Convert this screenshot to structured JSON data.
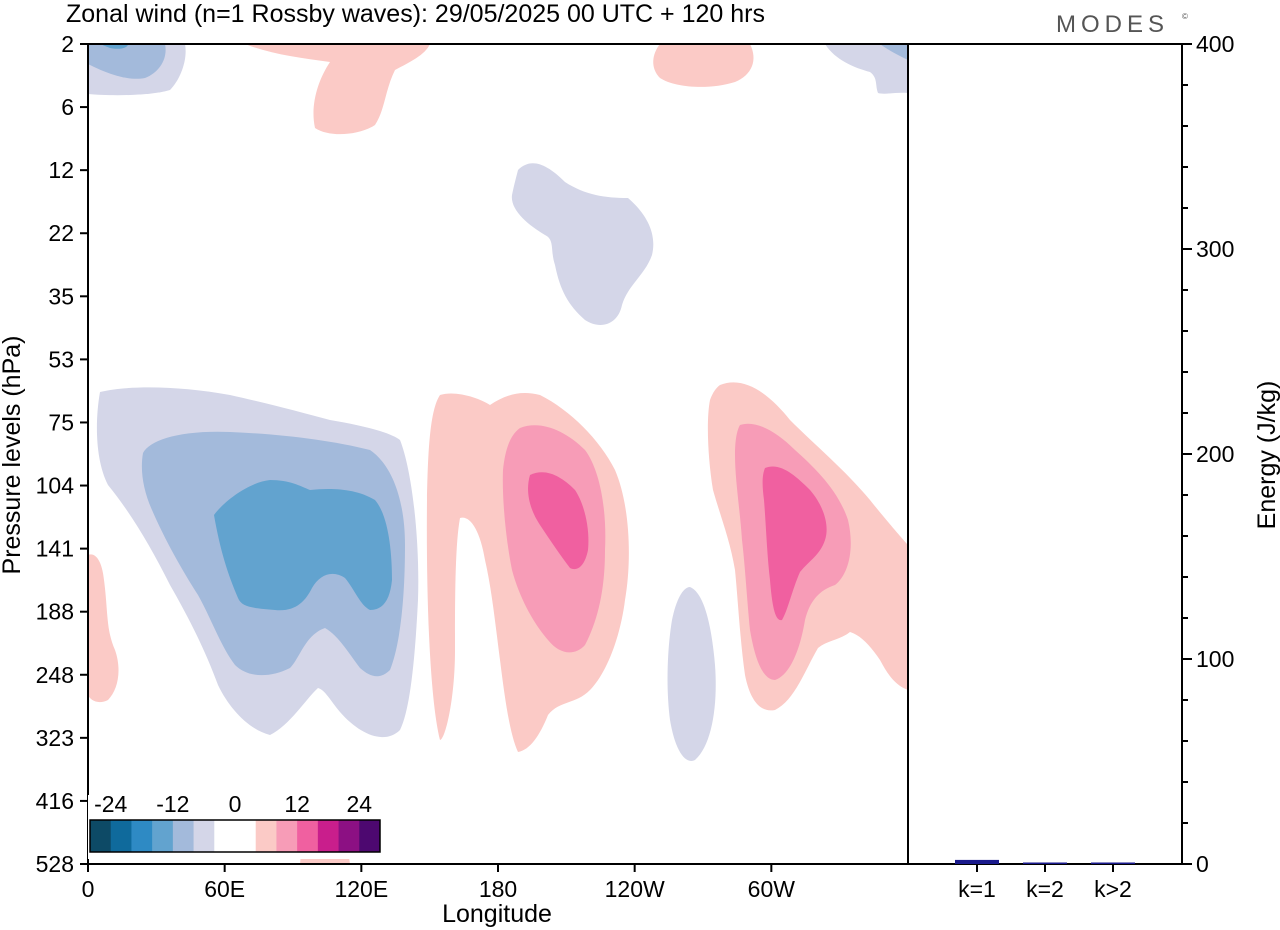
{
  "title": "Zonal wind (n=1 Rossby waves):  29/05/2025  00 UTC  + 120 hrs",
  "logo": "MODES",
  "logo_mark": "©",
  "chart_data": [
    {
      "type": "heatmap",
      "xlabel": "Longitude",
      "ylabel": "Pressure levels (hPa)",
      "x_ticks": [
        "0",
        "60E",
        "120E",
        "180",
        "120W",
        "60W"
      ],
      "y_ticks": [
        "2",
        "6",
        "12",
        "22",
        "35",
        "53",
        "75",
        "104",
        "141",
        "188",
        "248",
        "323",
        "416",
        "528"
      ],
      "y_scale": "ordinal",
      "colorbar": {
        "labels": [
          "-24",
          "-12",
          "0",
          "12",
          "24"
        ],
        "colors": [
          "#0d4a66",
          "#0f6a9c",
          "#2e8ac4",
          "#62a3cf",
          "#a3badb",
          "#d4d6e8",
          "#ffffff",
          "#ffffff",
          "#fbcac6",
          "#f79cb7",
          "#f060a0",
          "#c91e8c",
          "#8c1083",
          "#4d0870"
        ],
        "placement": "bottom-left"
      },
      "colors": {
        "neg_weak": "#d4d6e8",
        "neg_mid": "#a3badb",
        "neg_strong": "#62a3cf",
        "pos_weak": "#fbcac6",
        "pos_mid": "#f79cb7",
        "pos_strong": "#f060a0"
      }
    },
    {
      "type": "bar",
      "ylabel": "Energy (J/kg)",
      "categories": [
        "k=1",
        "k=2",
        "k>2"
      ],
      "values": [
        2,
        0.5,
        0.5
      ],
      "ylim": [
        0,
        400
      ],
      "y_ticks": [
        "0",
        "100",
        "200",
        "300",
        "400"
      ],
      "bar_color": "#1a1a8c"
    }
  ]
}
